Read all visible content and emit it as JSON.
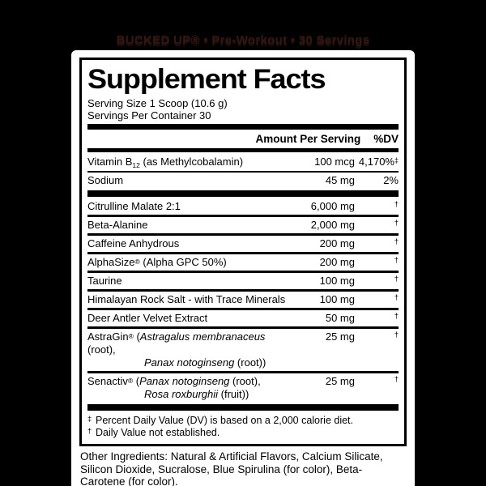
{
  "canvas": {
    "background": "#000000",
    "panel_background": "#ffffff",
    "text_color": "#000000"
  },
  "caption": {
    "text": "BUCKED UP® • Pre-Workout • 30 Servings",
    "color": "#331712"
  },
  "label": {
    "title": "Supplement Facts",
    "serving_size": "Serving Size 1 Scoop (10.6 g)",
    "servings_per_container": "Servings Per Container 30",
    "columns": {
      "amount": "Amount Per Serving",
      "dv": "%DV"
    },
    "vitamin_rows": [
      {
        "name_segments": [
          {
            "t": "Vitamin B"
          },
          {
            "t": "12",
            "sub": true
          },
          {
            "t": " (as Methylcobalamin)"
          }
        ],
        "amount": "100 mcg",
        "dv": "4,170%",
        "dv_mark": "‡"
      },
      {
        "name_segments": [
          {
            "t": "Sodium"
          }
        ],
        "amount": "45 mg",
        "dv": "2%",
        "dv_mark": ""
      }
    ],
    "ingredient_rows": [
      {
        "name_segments": [
          {
            "t": "Citrulline Malate 2:1"
          }
        ],
        "amount": "6,000 mg",
        "dagger": "†"
      },
      {
        "name_segments": [
          {
            "t": "Beta-Alanine"
          }
        ],
        "amount": "2,000 mg",
        "dagger": "†"
      },
      {
        "name_segments": [
          {
            "t": "Caffeine Anhydrous"
          }
        ],
        "amount": "200 mg",
        "dagger": "†"
      },
      {
        "name_segments": [
          {
            "t": "AlphaSize"
          },
          {
            "t": "®",
            "sup": true
          },
          {
            "t": " (Alpha GPC 50%)"
          }
        ],
        "amount": "200 mg",
        "dagger": "†"
      },
      {
        "name_segments": [
          {
            "t": "Taurine"
          }
        ],
        "amount": "100 mg",
        "dagger": "†"
      },
      {
        "name_segments": [
          {
            "t": "Himalayan Rock Salt - with Trace Minerals"
          }
        ],
        "amount": "100 mg",
        "dagger": "†"
      },
      {
        "name_segments": [
          {
            "t": "Deer Antler Velvet Extract"
          }
        ],
        "amount": "50 mg",
        "dagger": "†"
      },
      {
        "name_segments": [
          {
            "t": "AstraGin"
          },
          {
            "t": "®",
            "sup": true
          },
          {
            "t": " ("
          },
          {
            "t": "Astragalus membranaceus",
            "i": true
          },
          {
            "t": " (root),"
          }
        ],
        "line2_segments": [
          {
            "t": "Panax notoginseng",
            "i": true
          },
          {
            "t": " (root))"
          }
        ],
        "amount": "25 mg",
        "dagger": "†"
      },
      {
        "name_segments": [
          {
            "t": "Senactiv"
          },
          {
            "t": "®",
            "sup": true
          },
          {
            "t": " ("
          },
          {
            "t": "Panax notoginseng",
            "i": true
          },
          {
            "t": " (root),"
          }
        ],
        "line2_segments": [
          {
            "t": "Rosa roxburghii",
            "i": true
          },
          {
            "t": " (fruit))"
          }
        ],
        "amount": "25 mg",
        "dagger": "†"
      }
    ],
    "footnotes": [
      {
        "mark": "‡",
        "text": "Percent Daily Value (DV) is based on a 2,000 calorie diet."
      },
      {
        "mark": "†",
        "text": "Daily Value not established."
      }
    ]
  },
  "other_ingredients": "Other Ingredients: Natural & Artificial Flavors, Calcium Silicate, Silicon Dioxide, Sucralose, Blue Spirulina (for color), Beta-Carotene (for color)."
}
